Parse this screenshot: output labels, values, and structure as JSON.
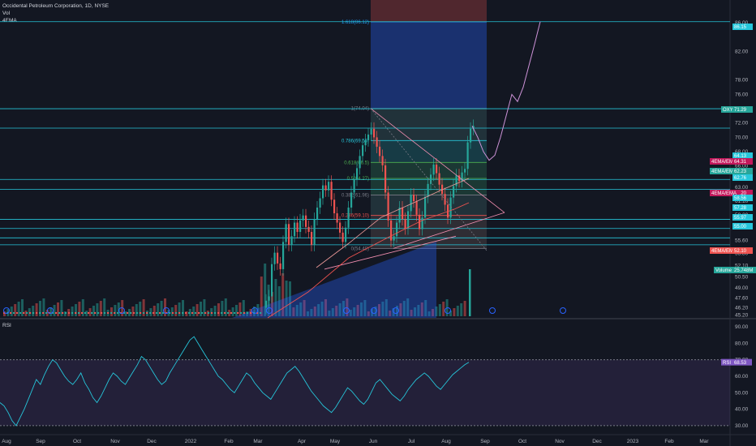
{
  "header": {
    "symbol_line": "Occidental Petroleum Corporation, 1D, NYSE",
    "vol_label": "Vol",
    "ema_label": "4EMA",
    "currency": "USD"
  },
  "rsi_panel": {
    "label": "RSI"
  },
  "chart_data": [
    {
      "type": "candlestick",
      "title": "Occidental Petroleum Corporation, 1D, NYSE",
      "xlabel": "",
      "ylabel": "USD",
      "x_ticks": [
        "Aug",
        "Sep",
        "Oct",
        "Nov",
        "Dec",
        "2022",
        "Feb",
        "Mar",
        "Apr",
        "May",
        "Jun",
        "Jul",
        "Aug",
        "Sep",
        "Oct",
        "Nov",
        "Dec",
        "2023",
        "Feb",
        "Mar"
      ],
      "y_ticks": [
        45.2,
        46.2,
        47.6,
        49.0,
        50.5,
        52.1,
        53.8,
        55.6,
        57.4,
        59.2,
        61.1,
        63.0,
        65.0,
        66.0,
        68.0,
        70.0,
        72.0,
        74.0,
        76.0,
        78.0,
        82.0,
        86.0
      ],
      "ylim": [
        44.8,
        88.5
      ],
      "candle_closes": [
        47.2,
        47.8,
        52.3,
        53.9,
        52.4,
        51.6,
        55.4,
        57.9,
        55.0,
        56.2,
        58.1,
        56.8,
        58.4,
        59.1,
        57.5,
        56.8,
        55.0,
        58.6,
        60.2,
        61.5,
        63.3,
        62.6,
        63.8,
        61.3,
        59.4,
        58.1,
        56.7,
        55.4,
        57.4,
        60.2,
        62.3,
        64.1,
        65.7,
        67.4,
        68.9,
        69.6,
        70.4,
        71.2,
        70.0,
        68.7,
        67.4,
        66.1,
        62.3,
        58.4,
        55.6,
        56.2,
        58.1,
        60.2,
        58.6,
        57.3,
        59.7,
        62.0,
        61.1,
        59.2,
        57.2,
        58.8,
        61.7,
        63.5,
        64.8,
        66.2,
        65.0,
        63.4,
        62.1,
        60.6,
        58.8,
        61.6,
        63.2,
        64.7,
        63.9,
        65.1,
        65.6,
        69.3,
        71.2,
        71.6
      ],
      "price_labels": [
        {
          "text": "86.15",
          "color": "#26c6da"
        },
        {
          "text": "OXY",
          "color": "#26a69a"
        },
        {
          "text": "71.29",
          "color": "#26a69a"
        },
        {
          "text": "64.13",
          "color": "#26c6da"
        },
        {
          "text": "4EMA/EMA",
          "color": "#c2185b"
        },
        {
          "text": "64.31",
          "color": "#c2185b"
        },
        {
          "text": "62.76",
          "color": "#26c6da"
        },
        {
          "text": "4EMA/EMA",
          "color": "#26a69a"
        },
        {
          "text": "62.23",
          "color": "#26a69a"
        },
        {
          "text": "59.20",
          "color": "#c2185b"
        },
        {
          "text": "4EMA/EMA",
          "color": "#c2185b"
        },
        {
          "text": "58.56",
          "color": "#26c6da"
        },
        {
          "text": "57.28",
          "color": "#26c6da"
        },
        {
          "text": "55.97",
          "color": "#26c6da"
        },
        {
          "text": "55.00",
          "color": "#26c6da"
        },
        {
          "text": "4EMA/EMA",
          "color": "#ef5350"
        },
        {
          "text": "52.10",
          "color": "#ef5350"
        },
        {
          "text": "Volume",
          "color": "#26a69a"
        },
        {
          "text": "25.748M",
          "color": "#26a69a"
        }
      ],
      "horizontal_levels": [
        86.15,
        74.0,
        71.29,
        64.13,
        62.76,
        58.56,
        57.28,
        55.97,
        55.0
      ],
      "fib_levels": [
        {
          "label": "1.618(86.12)",
          "value": 86.12,
          "color": "#2196f3"
        },
        {
          "label": "1(74.04)",
          "value": 74.04,
          "color": "#787b86"
        },
        {
          "label": "0.786(69.56)",
          "value": 69.56,
          "color": "#26c6da"
        },
        {
          "label": "0.618(66.5)",
          "value": 66.5,
          "color": "#4caf50"
        },
        {
          "label": "0.5(64.27)",
          "value": 64.27,
          "color": "#4caf50"
        },
        {
          "label": "0.382(61.96)",
          "value": 61.96,
          "color": "#787b86"
        },
        {
          "label": "0.236(59.10)",
          "value": 59.1,
          "color": "#ef5350"
        },
        {
          "label": "0(54.49)",
          "value": 54.49,
          "color": "#787b86"
        }
      ],
      "projection_path": [
        71.6,
        70.0,
        68.0,
        66.8,
        67.5,
        70.0,
        73.0,
        76.0,
        75.0,
        77.0,
        80.0,
        83.0,
        86.15
      ],
      "colors": {
        "up": "#26a69a",
        "down": "#ef5350",
        "accent": "#26c6da",
        "projection": "#ce93d8"
      }
    },
    {
      "type": "line",
      "title": "RSI",
      "xlabel": "",
      "ylabel": "",
      "y_ticks": [
        30,
        40,
        50,
        60,
        70,
        80,
        90
      ],
      "ylim": [
        27,
        92
      ],
      "bands": {
        "upper": 70,
        "lower": 30
      },
      "values": [
        44,
        42,
        38,
        33,
        30,
        35,
        40,
        46,
        52,
        58,
        55,
        61,
        66,
        70,
        68,
        64,
        60,
        57,
        55,
        58,
        62,
        56,
        52,
        47,
        44,
        48,
        53,
        58,
        62,
        60,
        57,
        55,
        59,
        63,
        67,
        72,
        70,
        66,
        62,
        58,
        55,
        57,
        62,
        66,
        70,
        74,
        78,
        82,
        84,
        80,
        76,
        72,
        68,
        64,
        60,
        58,
        55,
        52,
        50,
        54,
        58,
        62,
        60,
        56,
        53,
        50,
        48,
        46,
        50,
        54,
        58,
        62,
        64,
        66,
        63,
        59,
        55,
        51,
        48,
        45,
        42,
        40,
        38,
        41,
        45,
        49,
        53,
        51,
        48,
        45,
        43,
        46,
        51,
        56,
        58,
        55,
        52,
        49,
        47,
        45,
        48,
        52,
        55,
        58,
        60,
        62,
        60,
        57,
        54,
        52,
        55,
        58,
        61,
        63,
        65,
        67,
        68.5
      ],
      "last_label": {
        "text": "RSI",
        "value": "68.53",
        "color": "#7e57c2"
      }
    }
  ]
}
